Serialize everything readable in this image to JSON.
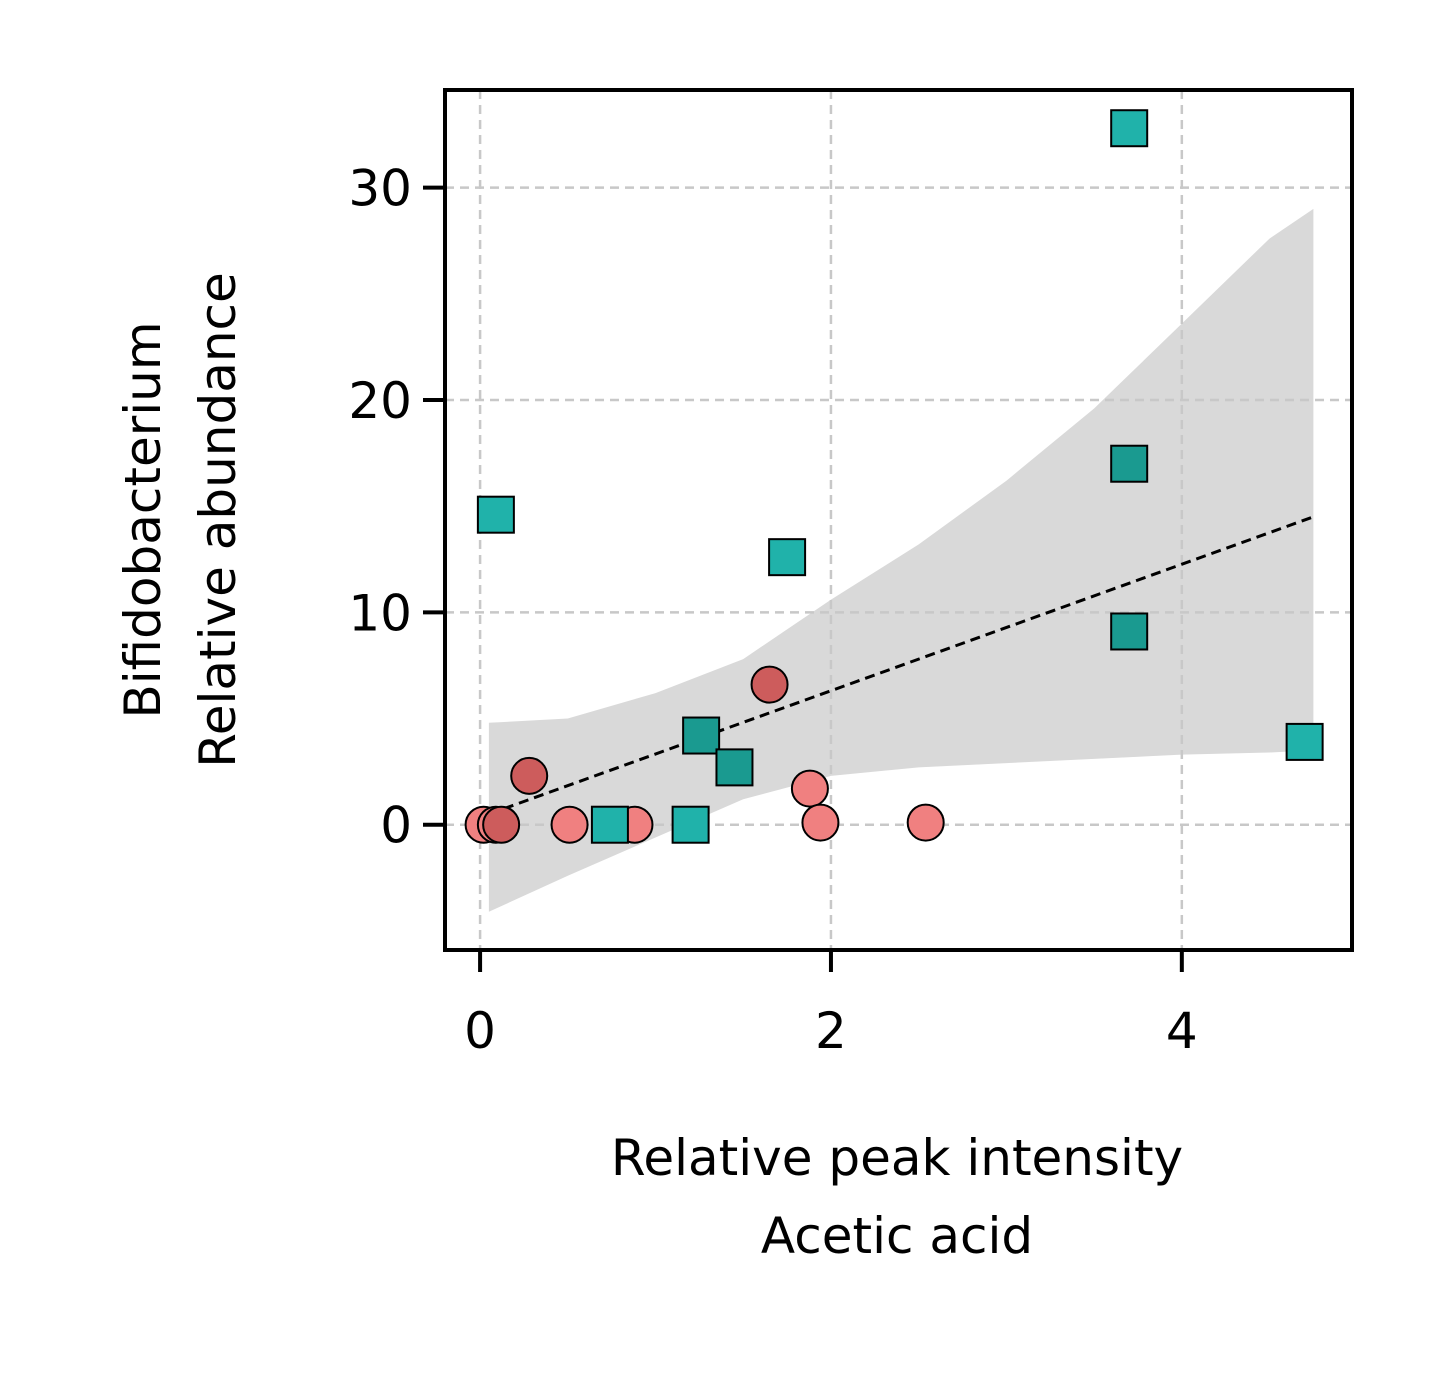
{
  "chart_data": {
    "type": "scatter",
    "xlabel": [
      "Relative peak intensity",
      "Acetic acid"
    ],
    "ylabel": [
      "Bifidobacterium",
      "Relative abundance"
    ],
    "xlim": [
      -0.2,
      4.97
    ],
    "ylim": [
      -5.9,
      34.6
    ],
    "xticks": [
      0,
      2,
      4
    ],
    "yticks": [
      0,
      10,
      20,
      30
    ],
    "grid": true,
    "legend": null,
    "series": [
      {
        "marker": "circle",
        "color": "#f08080",
        "points": [
          [
            0.02,
            0.0
          ],
          [
            0.09,
            0.0
          ],
          [
            0.51,
            0.0
          ],
          [
            0.88,
            0.0
          ],
          [
            1.88,
            1.7
          ],
          [
            1.94,
            0.1
          ],
          [
            2.54,
            0.1
          ]
        ]
      },
      {
        "marker": "circle",
        "color": "#cd5c5c",
        "points": [
          [
            0.12,
            0.0
          ],
          [
            0.28,
            2.3
          ],
          [
            1.65,
            6.6
          ]
        ]
      },
      {
        "marker": "square",
        "color": "#20b2aa",
        "points": [
          [
            0.09,
            14.6
          ],
          [
            0.74,
            0.0
          ],
          [
            1.2,
            0.0
          ],
          [
            1.75,
            12.6
          ],
          [
            3.7,
            32.8
          ],
          [
            4.7,
            3.9
          ]
        ]
      },
      {
        "marker": "square",
        "color": "#1a9a90",
        "points": [
          [
            1.26,
            4.2
          ],
          [
            1.45,
            2.7
          ],
          [
            3.7,
            17.0
          ],
          [
            3.7,
            9.1
          ]
        ]
      }
    ],
    "regression": {
      "x": [
        0.05,
        4.75
      ],
      "y": [
        0.5,
        14.5
      ],
      "style": "dashed",
      "color": "#000000"
    },
    "confidence_band": {
      "color": "#d9d9d9",
      "x": [
        0.05,
        0.5,
        1.0,
        1.5,
        2.0,
        2.5,
        3.0,
        3.5,
        4.0,
        4.5,
        4.75
      ],
      "upper": [
        4.8,
        5.0,
        6.2,
        7.8,
        10.6,
        13.2,
        16.2,
        19.6,
        23.6,
        27.6,
        29.0
      ],
      "lower": [
        -4.1,
        -2.4,
        -0.6,
        1.2,
        2.3,
        2.7,
        2.9,
        3.1,
        3.3,
        3.4,
        3.5
      ]
    }
  }
}
